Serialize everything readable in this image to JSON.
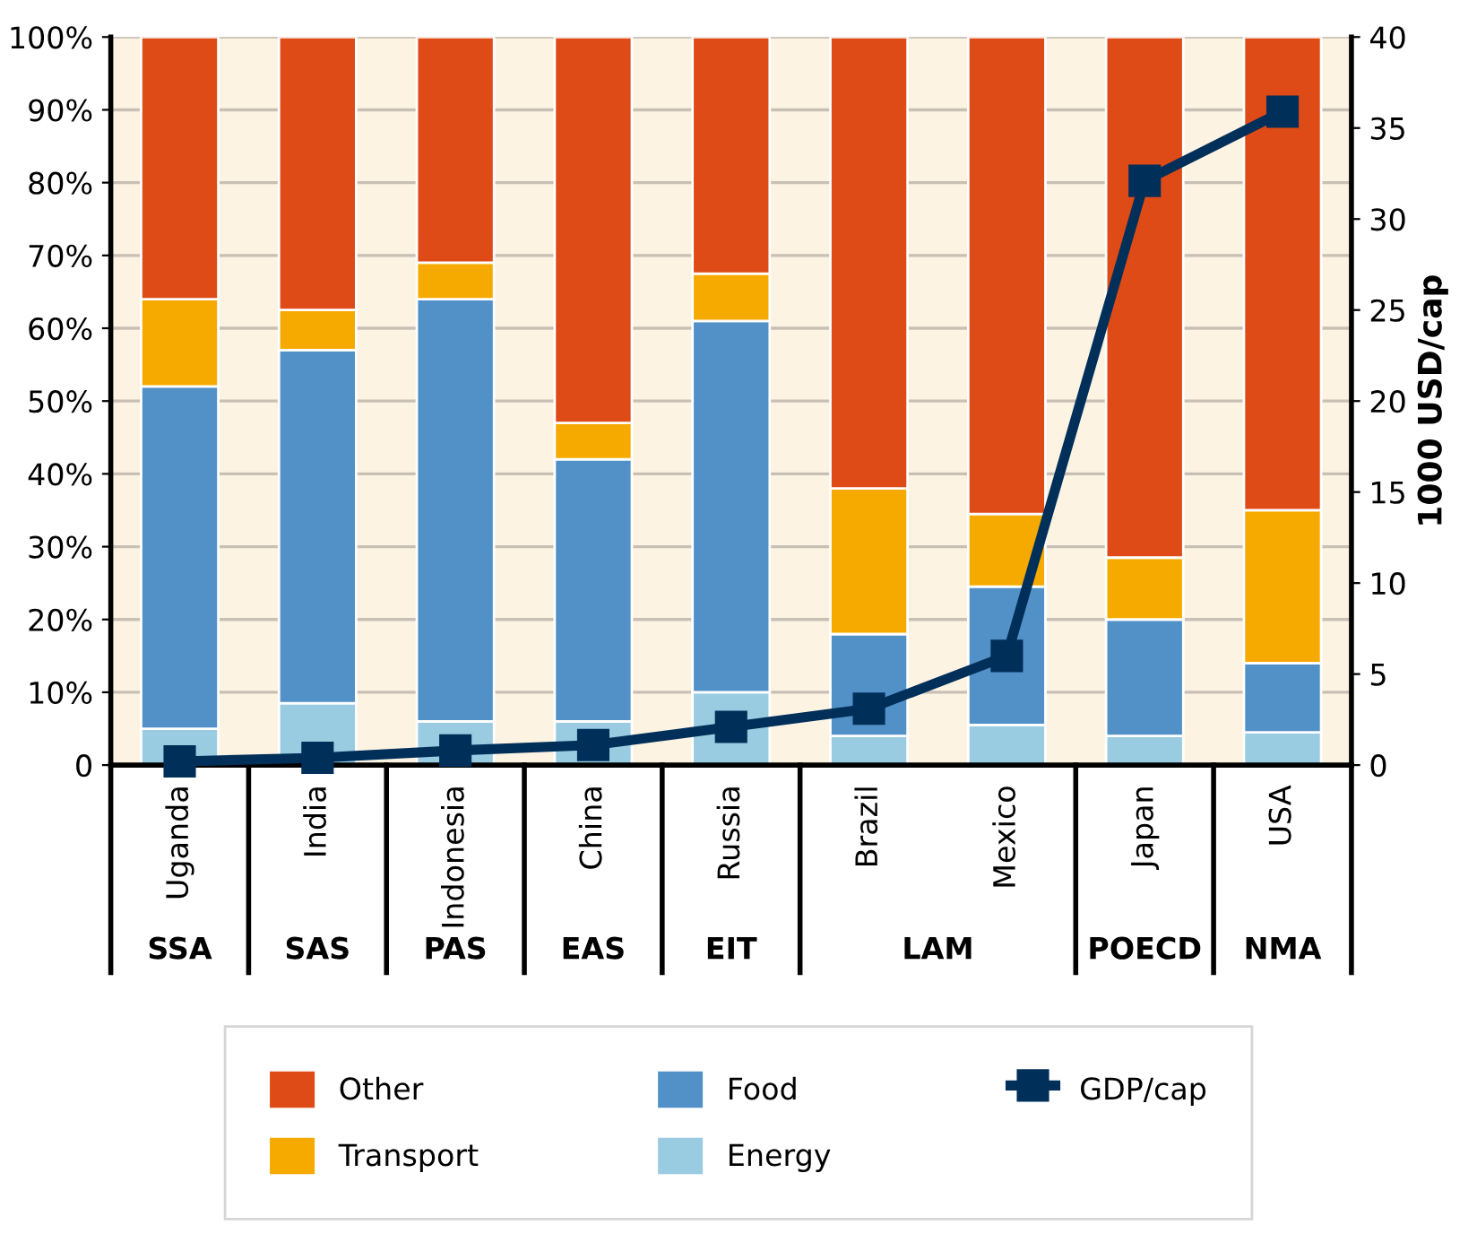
{
  "chart_data": {
    "type": "bar",
    "stacked": true,
    "categories": [
      "Uganda",
      "India",
      "Indonesia",
      "China",
      "Russia",
      "Brazil",
      "Mexico",
      "Japan",
      "USA"
    ],
    "series": [
      {
        "name": "Energy",
        "color": "#99cce1",
        "values": [
          5,
          8.5,
          6,
          6,
          10,
          4,
          5.5,
          4,
          4.5
        ]
      },
      {
        "name": "Food",
        "color": "#5291c8",
        "values": [
          47,
          48.5,
          58,
          36,
          51,
          14,
          19,
          16,
          9.5
        ]
      },
      {
        "name": "Transport",
        "color": "#f6aa00",
        "values": [
          12,
          5.5,
          5,
          5,
          6.5,
          20,
          10,
          8.5,
          21
        ]
      },
      {
        "name": "Other",
        "color": "#de4b16",
        "values": [
          36,
          37.5,
          31,
          53,
          32.5,
          62,
          65.5,
          71.5,
          65
        ]
      },
      {
        "name": "GDP/cap",
        "type": "line",
        "axis": "y2",
        "color": "#002f5a",
        "marker": "square",
        "values": [
          0.2,
          0.4,
          0.8,
          1.1,
          2.1,
          3.1,
          6,
          32.1,
          35.9
        ]
      }
    ],
    "ylim": [
      0,
      100
    ],
    "yticks": [
      0,
      {
        "value": 10,
        "label": "10%"
      },
      {
        "value": 20,
        "label": "20%"
      },
      {
        "value": 30,
        "label": "30%"
      },
      {
        "value": 40,
        "label": "40%"
      },
      {
        "value": 50,
        "label": "50%"
      },
      {
        "value": 60,
        "label": "60%"
      },
      {
        "value": 70,
        "label": "70%"
      },
      {
        "value": 80,
        "label": "80%"
      },
      {
        "value": 90,
        "label": "90%"
      },
      {
        "value": 100,
        "label": "100%"
      }
    ],
    "y2lim": [
      0,
      40
    ],
    "y2ticks": [
      0,
      5,
      10,
      15,
      20,
      25,
      30,
      35,
      40
    ],
    "y2label": "1000 USD/cap",
    "annotations": [
      "SSA",
      "SAS",
      "PAS",
      "EAS",
      "EIT",
      "LAM",
      "POECD",
      "NMA"
    ],
    "grid": "y",
    "legend": "bottom"
  }
}
